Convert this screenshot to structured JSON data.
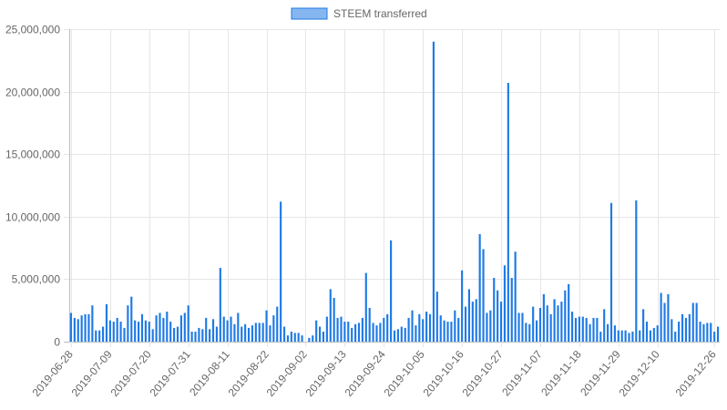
{
  "chart_data": {
    "type": "bar",
    "title": "",
    "xlabel": "",
    "ylabel": "",
    "legend": {
      "position": "top-center"
    },
    "series": [
      {
        "name": "STEEM transferred",
        "color": "#1e7ae6",
        "fill": "#86b6f0",
        "values": [
          2300000,
          1900000,
          1800000,
          2100000,
          2200000,
          2200000,
          2900000,
          900000,
          900000,
          1200000,
          3000000,
          1700000,
          1600000,
          1900000,
          1600000,
          1100000,
          2900000,
          3600000,
          1700000,
          1600000,
          2200000,
          1700000,
          1600000,
          1000000,
          2100000,
          2300000,
          1900000,
          2400000,
          1600000,
          1100000,
          1200000,
          2100000,
          2300000,
          2900000,
          800000,
          800000,
          1100000,
          1000000,
          1900000,
          1000000,
          1800000,
          1200000,
          5900000,
          2000000,
          1700000,
          2000000,
          1400000,
          2300000,
          1200000,
          1400000,
          1100000,
          1300000,
          1500000,
          1500000,
          1500000,
          2500000,
          1300000,
          2100000,
          2800000,
          11200000,
          1200000,
          500000,
          800000,
          700000,
          700000,
          500000,
          0,
          300000,
          500000,
          1700000,
          1200000,
          800000,
          2000000,
          4200000,
          3500000,
          1900000,
          2000000,
          1600000,
          1600000,
          1100000,
          1400000,
          1500000,
          1900000,
          5500000,
          2700000,
          1500000,
          1300000,
          1500000,
          1900000,
          2200000,
          8100000,
          900000,
          1000000,
          1200000,
          1100000,
          1900000,
          2500000,
          1300000,
          2200000,
          1800000,
          2400000,
          2200000,
          24000000,
          4000000,
          2100000,
          1700000,
          1600000,
          1600000,
          2500000,
          1900000,
          5700000,
          2800000,
          4200000,
          3200000,
          3400000,
          8600000,
          7400000,
          2300000,
          2500000,
          5100000,
          4100000,
          3200000,
          6100000,
          20700000,
          5100000,
          7200000,
          2300000,
          2300000,
          1500000,
          1400000,
          2800000,
          1700000,
          2700000,
          3800000,
          2900000,
          2200000,
          3400000,
          2900000,
          3200000,
          4100000,
          4600000,
          2400000,
          1900000,
          2000000,
          2000000,
          1900000,
          1400000,
          1900000,
          1900000,
          800000,
          2600000,
          1400000,
          11100000,
          1300000,
          900000,
          900000,
          900000,
          700000,
          800000,
          11300000,
          900000,
          2600000,
          1600000,
          900000,
          1100000,
          1300000,
          3900000,
          3100000,
          3800000,
          1800000,
          800000,
          1600000,
          2200000,
          1900000,
          2200000,
          3100000,
          3100000,
          1600000,
          1400000,
          1500000,
          1500000,
          800000,
          1200000
        ]
      }
    ],
    "x_start": "2019-06-28",
    "x_end": "2019-12-26",
    "x_tick_labels": [
      "2019-06-28",
      "2019-07-09",
      "2019-07-20",
      "2019-07-31",
      "2019-08-11",
      "2019-08-22",
      "2019-09-02",
      "2019-09-13",
      "2019-09-24",
      "2019-10-05",
      "2019-10-16",
      "2019-10-27",
      "2019-11-07",
      "2019-11-18",
      "2019-11-29",
      "2019-12-10",
      "2019-12-26"
    ],
    "y_ticks": [
      0,
      5000000,
      10000000,
      15000000,
      20000000,
      25000000
    ],
    "y_tick_labels": [
      "0",
      "5,000,000",
      "10,000,000",
      "15,000,000",
      "20,000,000",
      "25,000,000"
    ],
    "ylim": [
      0,
      25000000
    ],
    "grid": true
  }
}
